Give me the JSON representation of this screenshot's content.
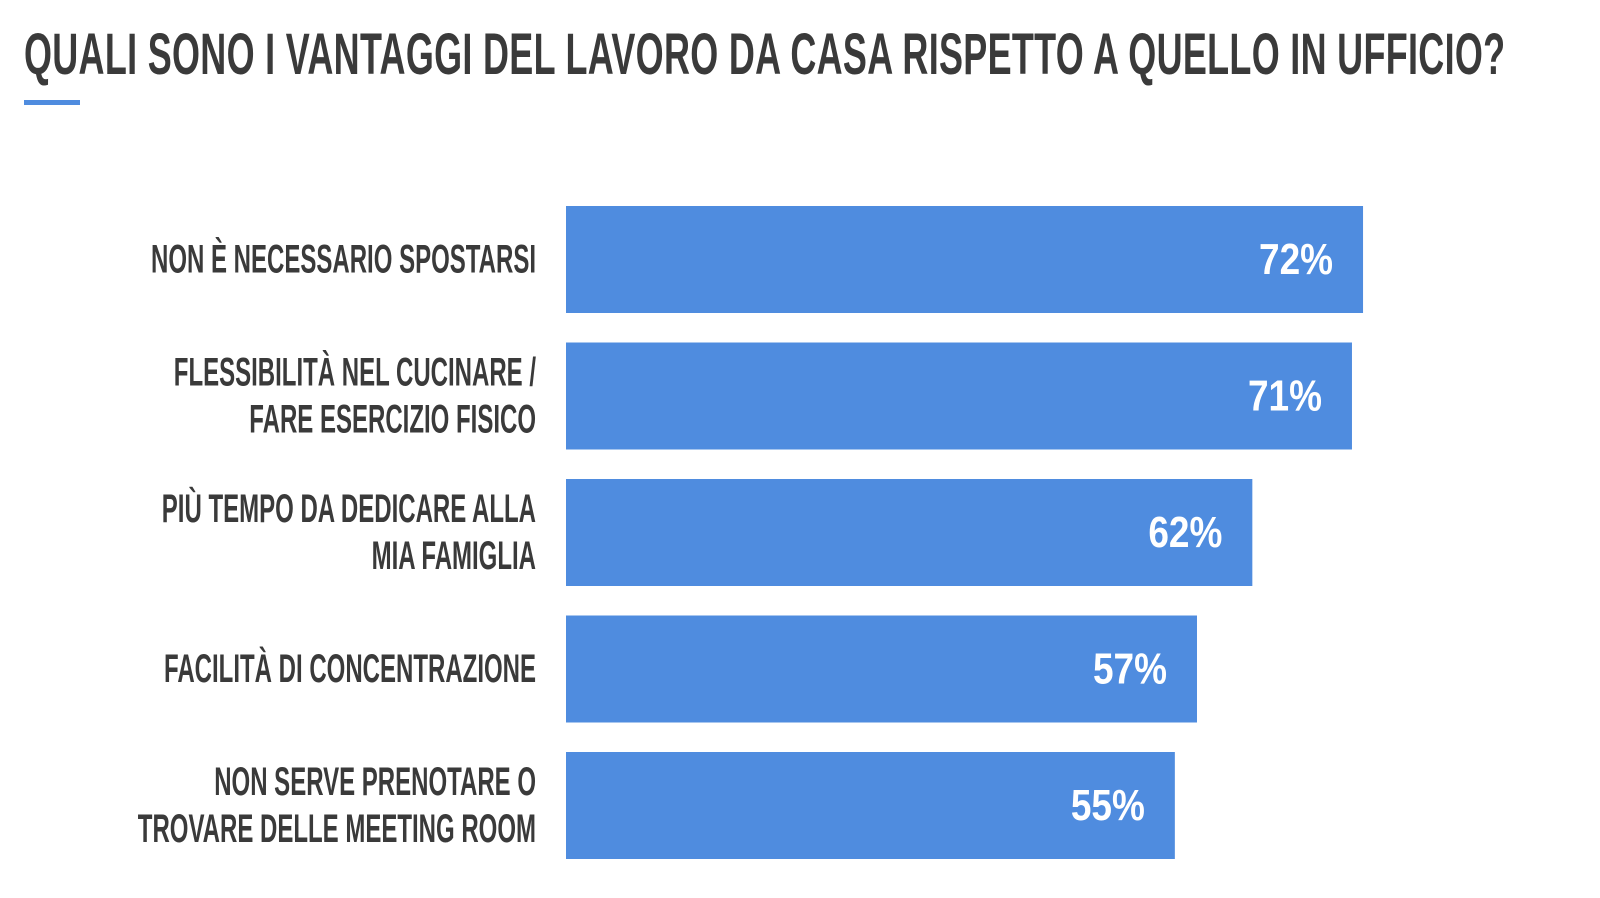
{
  "chart_data": {
    "type": "bar",
    "orientation": "horizontal",
    "title": "QUALI SONO I VANTAGGI DEL LAVORO DA CASA RISPETTO A QUELLO IN UFFICIO?",
    "categories": [
      [
        "NON È NECESSARIO SPOSTARSI"
      ],
      [
        "FLESSIBILITÀ NEL CUCINARE /",
        "FARE ESERCIZIO FISICO"
      ],
      [
        "PIÙ TEMPO DA DEDICARE ALLA",
        "MIA FAMIGLIA"
      ],
      [
        "FACILITÀ DI CONCENTRAZIONE"
      ],
      [
        "NON SERVE PRENOTARE O",
        "TROVARE DELLE MEETING ROOM"
      ]
    ],
    "values": [
      72,
      71,
      62,
      57,
      55
    ],
    "value_labels": [
      "72%",
      "71%",
      "62%",
      "57%",
      "55%"
    ],
    "unit": "%",
    "xlim": [
      0,
      100
    ],
    "grid": false,
    "legend": "none",
    "bar_color": "#4f8cdf",
    "accent_color": "#4f8cdf",
    "text_color": "#3a3a3a"
  }
}
